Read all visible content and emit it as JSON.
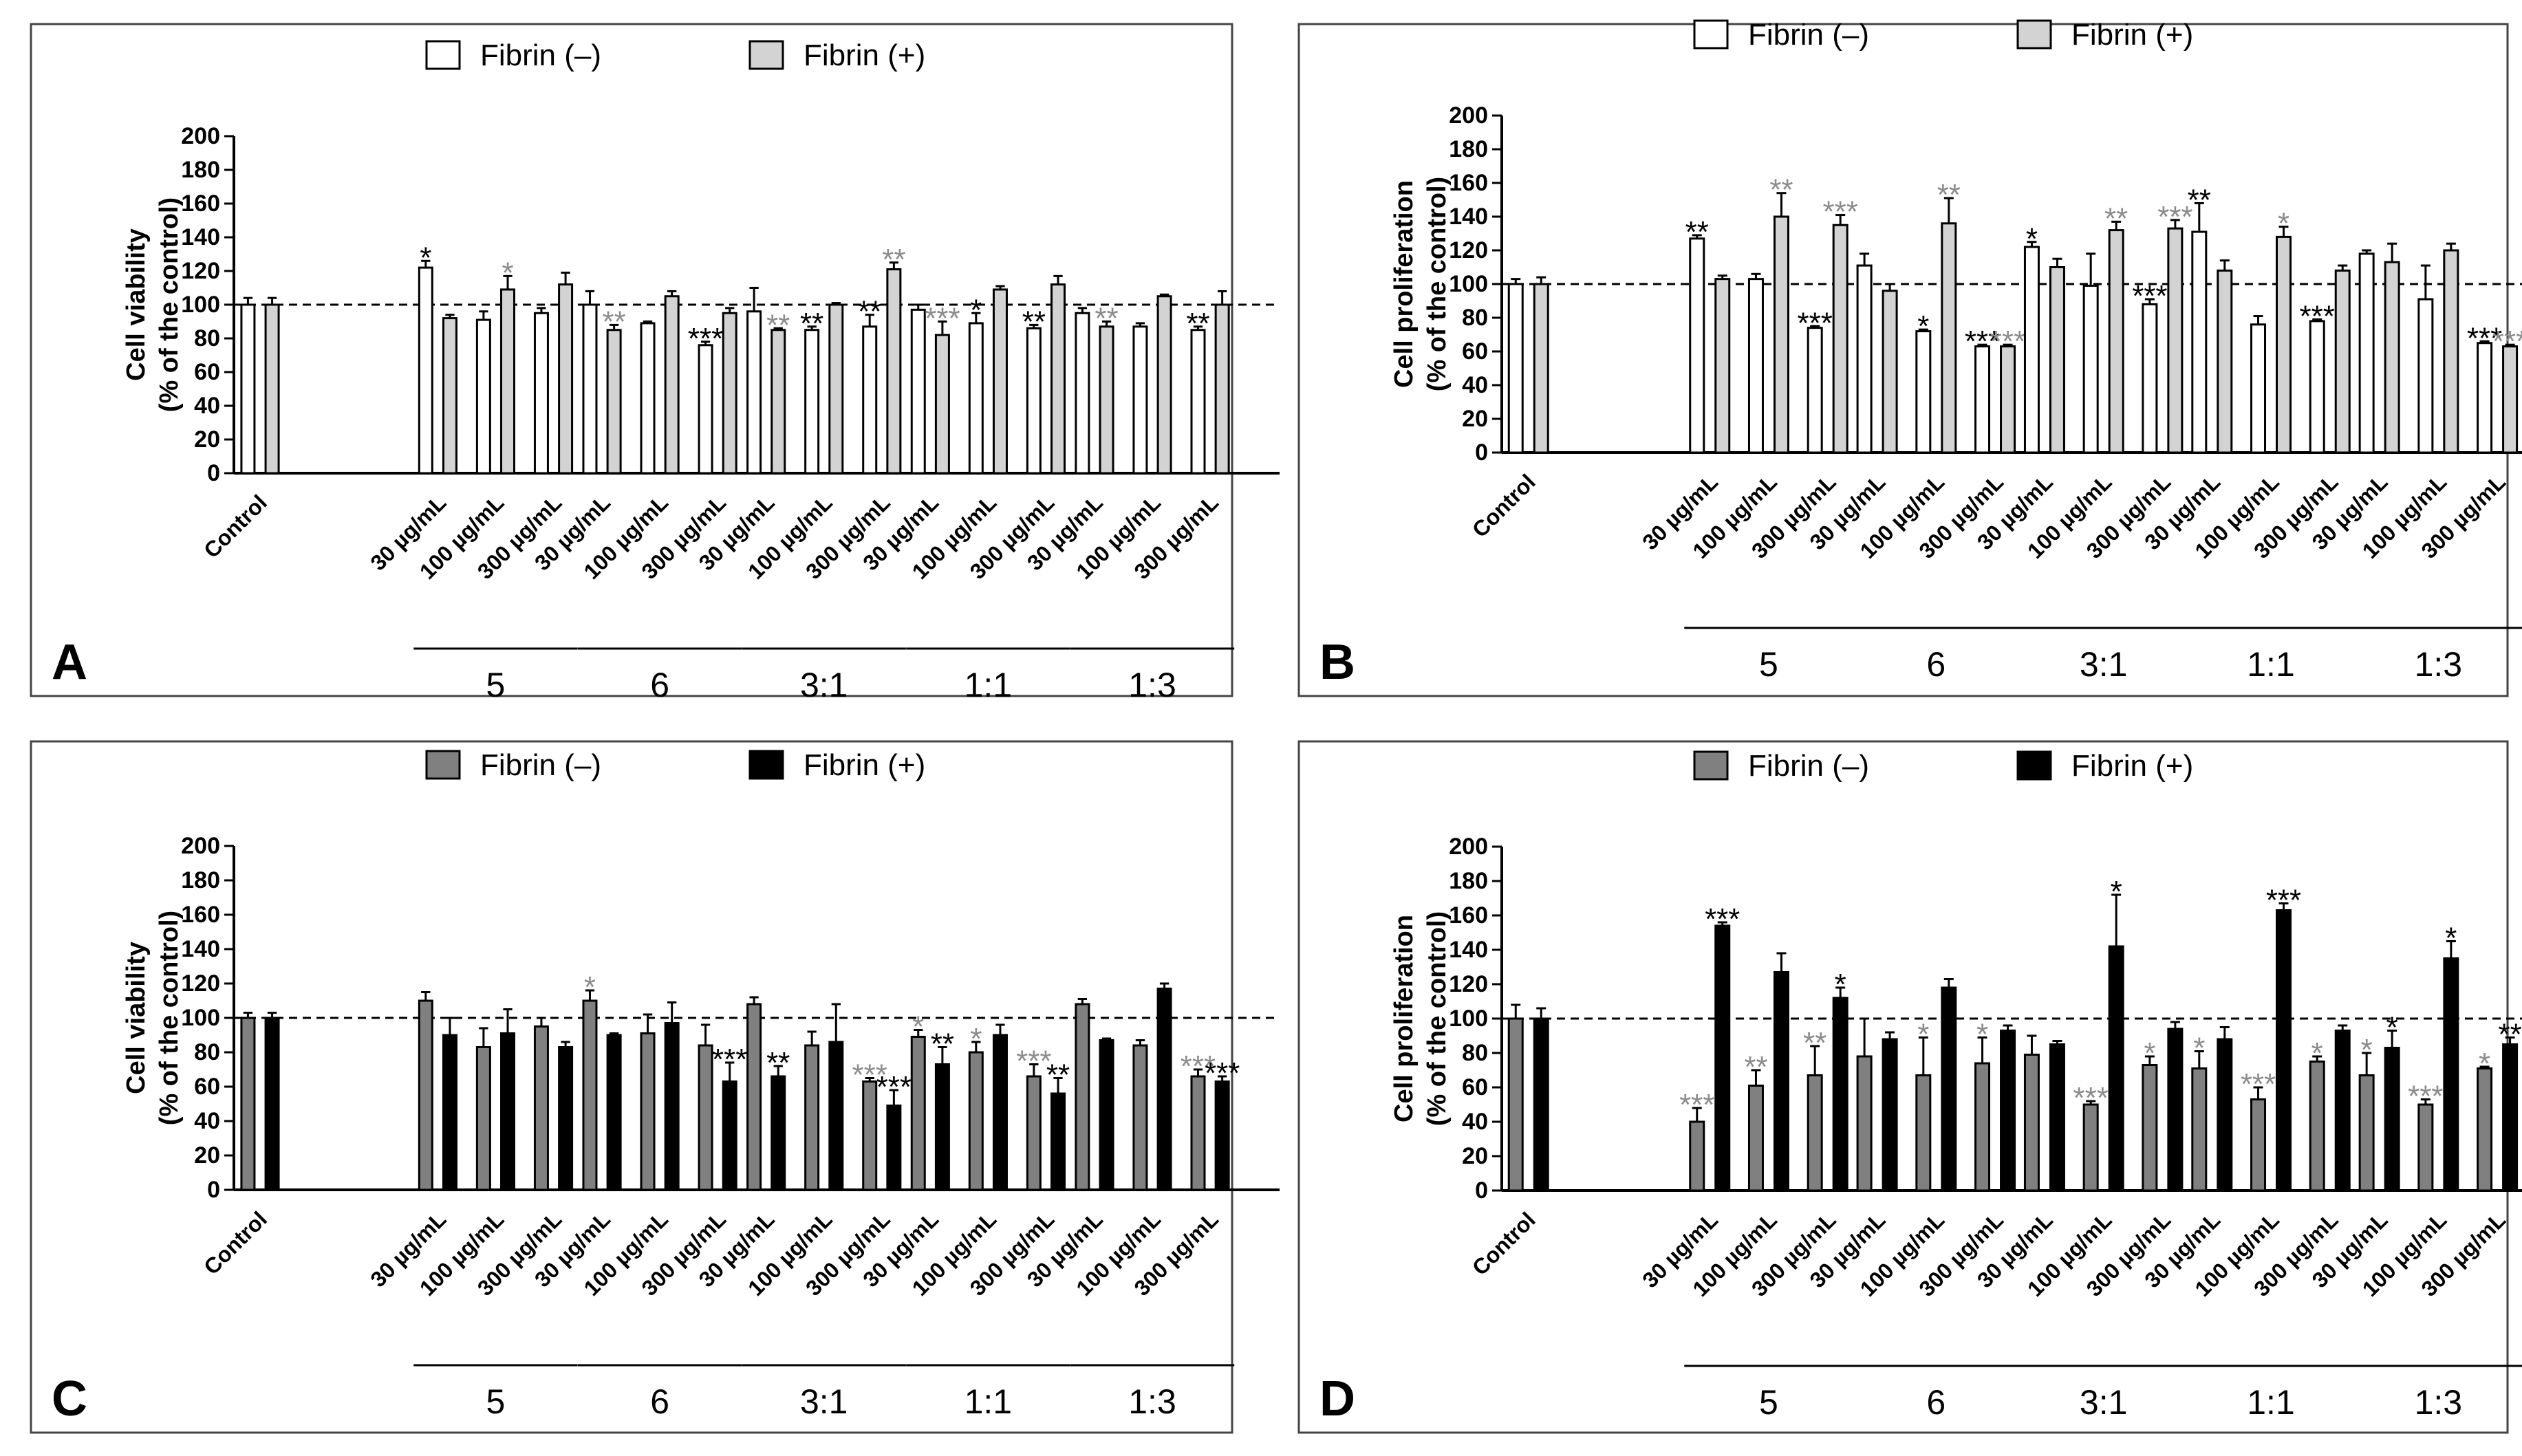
{
  "figure": {
    "colors": {
      "black": "#000000",
      "gray_sig": "#8c8c8c",
      "light_bar": "#d3d3d3",
      "mid_bar": "#808080",
      "white": "#ffffff"
    },
    "control_label": "Control",
    "concentrations": [
      "30 µg/mL",
      "100 µg/mL",
      "300 µg/mL"
    ],
    "groups": [
      "5",
      "6",
      "3:1",
      "1:1",
      "1:3"
    ],
    "y_ticks": [
      "0",
      "20",
      "40",
      "60",
      "80",
      "100",
      "120",
      "140",
      "160",
      "180",
      "200"
    ]
  },
  "chart_data": [
    {
      "panel": "A",
      "type": "bar",
      "ylabel_line1": "Cell viability",
      "ylabel_line2": "(% of the control)",
      "ylim": [
        0,
        200
      ],
      "reference_line": 100,
      "legend": [
        "Fibrin (–)",
        "Fibrin (+)"
      ],
      "series_colors": [
        "#ffffff",
        "#d3d3d3"
      ],
      "control": {
        "values": [
          100,
          100
        ],
        "errors": [
          4,
          4
        ]
      },
      "bars": [
        {
          "fminus": 122,
          "fminus_err": 4,
          "fplus": 92,
          "fplus_err": 2,
          "fminus_sig": "*",
          "fminus_sig_color": "black",
          "fplus_sig": "",
          "fplus_sig_color": "black"
        },
        {
          "fminus": 91,
          "fminus_err": 5,
          "fplus": 109,
          "fplus_err": 8,
          "fminus_sig": "",
          "fminus_sig_color": "black",
          "fplus_sig": "*",
          "fplus_sig_color": "gray"
        },
        {
          "fminus": 95,
          "fminus_err": 3,
          "fplus": 112,
          "fplus_err": 7,
          "fminus_sig": "",
          "fminus_sig_color": "black",
          "fplus_sig": "",
          "fplus_sig_color": "black"
        },
        {
          "fminus": 100,
          "fminus_err": 8,
          "fplus": 85,
          "fplus_err": 3,
          "fminus_sig": "",
          "fminus_sig_color": "black",
          "fplus_sig": "**",
          "fplus_sig_color": "gray"
        },
        {
          "fminus": 89,
          "fminus_err": 1,
          "fplus": 105,
          "fplus_err": 3,
          "fminus_sig": "",
          "fminus_sig_color": "black",
          "fplus_sig": "",
          "fplus_sig_color": "black"
        },
        {
          "fminus": 76,
          "fminus_err": 2,
          "fplus": 95,
          "fplus_err": 3,
          "fminus_sig": "***",
          "fminus_sig_color": "black",
          "fplus_sig": "",
          "fplus_sig_color": "black"
        },
        {
          "fminus": 96,
          "fminus_err": 14,
          "fplus": 85,
          "fplus_err": 1,
          "fminus_sig": "",
          "fminus_sig_color": "black",
          "fplus_sig": "**",
          "fplus_sig_color": "gray"
        },
        {
          "fminus": 85,
          "fminus_err": 2,
          "fplus": 100,
          "fplus_err": 1,
          "fminus_sig": "**",
          "fminus_sig_color": "black",
          "fplus_sig": "",
          "fplus_sig_color": "black"
        },
        {
          "fminus": 87,
          "fminus_err": 7,
          "fplus": 121,
          "fplus_err": 4,
          "fminus_sig": "**",
          "fminus_sig_color": "black",
          "fplus_sig": "**",
          "fplus_sig_color": "gray"
        },
        {
          "fminus": 97,
          "fminus_err": 3,
          "fplus": 82,
          "fplus_err": 8,
          "fminus_sig": "",
          "fminus_sig_color": "black",
          "fplus_sig": "***",
          "fplus_sig_color": "gray"
        },
        {
          "fminus": 89,
          "fminus_err": 6,
          "fplus": 109,
          "fplus_err": 2,
          "fminus_sig": "*",
          "fminus_sig_color": "black",
          "fplus_sig": "",
          "fplus_sig_color": "black"
        },
        {
          "fminus": 86,
          "fminus_err": 2,
          "fplus": 112,
          "fplus_err": 5,
          "fminus_sig": "**",
          "fminus_sig_color": "black",
          "fplus_sig": "",
          "fplus_sig_color": "black"
        },
        {
          "fminus": 95,
          "fminus_err": 3,
          "fplus": 87,
          "fplus_err": 3,
          "fminus_sig": "",
          "fminus_sig_color": "black",
          "fplus_sig": "**",
          "fplus_sig_color": "gray"
        },
        {
          "fminus": 87,
          "fminus_err": 2,
          "fplus": 105,
          "fplus_err": 1,
          "fminus_sig": "",
          "fminus_sig_color": "black",
          "fplus_sig": "",
          "fplus_sig_color": "black"
        },
        {
          "fminus": 85,
          "fminus_err": 2,
          "fplus": 100,
          "fplus_err": 8,
          "fminus_sig": "**",
          "fminus_sig_color": "black",
          "fplus_sig": "",
          "fplus_sig_color": "black"
        }
      ]
    },
    {
      "panel": "B",
      "type": "bar",
      "ylabel_line1": "Cell proliferation",
      "ylabel_line2": "(% of the control)",
      "ylim": [
        0,
        200
      ],
      "reference_line": 100,
      "legend": [
        "Fibrin (–)",
        "Fibrin (+)"
      ],
      "series_colors": [
        "#ffffff",
        "#d3d3d3"
      ],
      "control": {
        "values": [
          100,
          100
        ],
        "errors": [
          3,
          4
        ]
      },
      "bars": [
        {
          "fminus": 127,
          "fminus_err": 2,
          "fplus": 103,
          "fplus_err": 2,
          "fminus_sig": "**",
          "fminus_sig_color": "black",
          "fplus_sig": "",
          "fplus_sig_color": "black"
        },
        {
          "fminus": 103,
          "fminus_err": 3,
          "fplus": 140,
          "fplus_err": 14,
          "fminus_sig": "",
          "fminus_sig_color": "black",
          "fplus_sig": "**",
          "fplus_sig_color": "gray"
        },
        {
          "fminus": 74,
          "fminus_err": 1,
          "fplus": 135,
          "fplus_err": 6,
          "fminus_sig": "***",
          "fminus_sig_color": "black",
          "fplus_sig": "***",
          "fplus_sig_color": "gray"
        },
        {
          "fminus": 111,
          "fminus_err": 7,
          "fplus": 96,
          "fplus_err": 4,
          "fminus_sig": "",
          "fminus_sig_color": "black",
          "fplus_sig": "",
          "fplus_sig_color": "black"
        },
        {
          "fminus": 72,
          "fminus_err": 1,
          "fplus": 136,
          "fplus_err": 15,
          "fminus_sig": "*",
          "fminus_sig_color": "black",
          "fplus_sig": "**",
          "fplus_sig_color": "gray"
        },
        {
          "fminus": 63,
          "fminus_err": 1,
          "fplus": 63,
          "fplus_err": 1,
          "fminus_sig": "***",
          "fminus_sig_color": "black",
          "fplus_sig": "***",
          "fplus_sig_color": "gray"
        },
        {
          "fminus": 122,
          "fminus_err": 3,
          "fplus": 110,
          "fplus_err": 5,
          "fminus_sig": "*",
          "fminus_sig_color": "black",
          "fplus_sig": "",
          "fplus_sig_color": "black"
        },
        {
          "fminus": 99,
          "fminus_err": 19,
          "fplus": 132,
          "fplus_err": 5,
          "fminus_sig": "",
          "fminus_sig_color": "black",
          "fplus_sig": "**",
          "fplus_sig_color": "gray"
        },
        {
          "fminus": 88,
          "fminus_err": 3,
          "fplus": 133,
          "fplus_err": 5,
          "fminus_sig": "***",
          "fminus_sig_color": "black",
          "fplus_sig": "***",
          "fplus_sig_color": "gray"
        },
        {
          "fminus": 131,
          "fminus_err": 17,
          "fplus": 108,
          "fplus_err": 6,
          "fminus_sig": "**",
          "fminus_sig_color": "black",
          "fplus_sig": "",
          "fplus_sig_color": "black"
        },
        {
          "fminus": 76,
          "fminus_err": 5,
          "fplus": 128,
          "fplus_err": 6,
          "fminus_sig": "",
          "fminus_sig_color": "black",
          "fplus_sig": "*",
          "fplus_sig_color": "gray"
        },
        {
          "fminus": 78,
          "fminus_err": 1,
          "fplus": 108,
          "fplus_err": 3,
          "fminus_sig": "***",
          "fminus_sig_color": "black",
          "fplus_sig": "",
          "fplus_sig_color": "black"
        },
        {
          "fminus": 118,
          "fminus_err": 2,
          "fplus": 113,
          "fplus_err": 11,
          "fminus_sig": "",
          "fminus_sig_color": "black",
          "fplus_sig": "",
          "fplus_sig_color": "black"
        },
        {
          "fminus": 91,
          "fminus_err": 20,
          "fplus": 120,
          "fplus_err": 4,
          "fminus_sig": "",
          "fminus_sig_color": "black",
          "fplus_sig": "",
          "fplus_sig_color": "black"
        },
        {
          "fminus": 65,
          "fminus_err": 1,
          "fplus": 63,
          "fplus_err": 1,
          "fminus_sig": "***",
          "fminus_sig_color": "black",
          "fplus_sig": "***",
          "fplus_sig_color": "gray"
        }
      ]
    },
    {
      "panel": "C",
      "type": "bar",
      "ylabel_line1": "Cell viability",
      "ylabel_line2": "(% of the control)",
      "ylim": [
        0,
        200
      ],
      "reference_line": 100,
      "legend": [
        "Fibrin (–)",
        "Fibrin (+)"
      ],
      "series_colors": [
        "#808080",
        "#000000"
      ],
      "control": {
        "values": [
          100,
          100
        ],
        "errors": [
          3,
          3
        ]
      },
      "bars": [
        {
          "fminus": 110,
          "fminus_err": 5,
          "fplus": 90,
          "fplus_err": 10,
          "fminus_sig": "",
          "fminus_sig_color": "black",
          "fplus_sig": "",
          "fplus_sig_color": "black"
        },
        {
          "fminus": 83,
          "fminus_err": 11,
          "fplus": 91,
          "fplus_err": 14,
          "fminus_sig": "",
          "fminus_sig_color": "black",
          "fplus_sig": "",
          "fplus_sig_color": "black"
        },
        {
          "fminus": 95,
          "fminus_err": 5,
          "fplus": 83,
          "fplus_err": 3,
          "fminus_sig": "",
          "fminus_sig_color": "black",
          "fplus_sig": "",
          "fplus_sig_color": "black"
        },
        {
          "fminus": 110,
          "fminus_err": 6,
          "fplus": 90,
          "fplus_err": 1,
          "fminus_sig": "*",
          "fminus_sig_color": "gray",
          "fplus_sig": "",
          "fplus_sig_color": "black"
        },
        {
          "fminus": 91,
          "fminus_err": 11,
          "fplus": 97,
          "fplus_err": 12,
          "fminus_sig": "",
          "fminus_sig_color": "black",
          "fplus_sig": "",
          "fplus_sig_color": "black"
        },
        {
          "fminus": 84,
          "fminus_err": 12,
          "fplus": 63,
          "fplus_err": 11,
          "fminus_sig": "",
          "fminus_sig_color": "black",
          "fplus_sig": "***",
          "fplus_sig_color": "black"
        },
        {
          "fminus": 108,
          "fminus_err": 4,
          "fplus": 66,
          "fplus_err": 6,
          "fminus_sig": "",
          "fminus_sig_color": "black",
          "fplus_sig": "**",
          "fplus_sig_color": "black"
        },
        {
          "fminus": 84,
          "fminus_err": 8,
          "fplus": 86,
          "fplus_err": 22,
          "fminus_sig": "",
          "fminus_sig_color": "black",
          "fplus_sig": "",
          "fplus_sig_color": "black"
        },
        {
          "fminus": 63,
          "fminus_err": 2,
          "fplus": 49,
          "fplus_err": 9,
          "fminus_sig": "***",
          "fminus_sig_color": "gray",
          "fplus_sig": "***",
          "fplus_sig_color": "black"
        },
        {
          "fminus": 89,
          "fminus_err": 4,
          "fplus": 73,
          "fplus_err": 10,
          "fminus_sig": "*",
          "fminus_sig_color": "gray",
          "fplus_sig": "**",
          "fplus_sig_color": "black"
        },
        {
          "fminus": 80,
          "fminus_err": 6,
          "fplus": 90,
          "fplus_err": 6,
          "fminus_sig": "*",
          "fminus_sig_color": "gray",
          "fplus_sig": "",
          "fplus_sig_color": "black"
        },
        {
          "fminus": 66,
          "fminus_err": 7,
          "fplus": 56,
          "fplus_err": 9,
          "fminus_sig": "***",
          "fminus_sig_color": "gray",
          "fplus_sig": "**",
          "fplus_sig_color": "black"
        },
        {
          "fminus": 108,
          "fminus_err": 3,
          "fplus": 87,
          "fplus_err": 1,
          "fminus_sig": "",
          "fminus_sig_color": "black",
          "fplus_sig": "",
          "fplus_sig_color": "black"
        },
        {
          "fminus": 84,
          "fminus_err": 3,
          "fplus": 117,
          "fplus_err": 3,
          "fminus_sig": "",
          "fminus_sig_color": "black",
          "fplus_sig": "",
          "fplus_sig_color": "black"
        },
        {
          "fminus": 66,
          "fminus_err": 4,
          "fplus": 63,
          "fplus_err": 3,
          "fminus_sig": "***",
          "fminus_sig_color": "gray",
          "fplus_sig": "***",
          "fplus_sig_color": "black"
        }
      ]
    },
    {
      "panel": "D",
      "type": "bar",
      "ylabel_line1": "Cell proliferation",
      "ylabel_line2": "(% of the control)",
      "ylim": [
        0,
        200
      ],
      "reference_line": 100,
      "legend": [
        "Fibrin (–)",
        "Fibrin (+)"
      ],
      "series_colors": [
        "#808080",
        "#000000"
      ],
      "control": {
        "values": [
          100,
          100
        ],
        "errors": [
          8,
          6
        ]
      },
      "bars": [
        {
          "fminus": 40,
          "fminus_err": 8,
          "fplus": 154,
          "fplus_err": 2,
          "fminus_sig": "***",
          "fminus_sig_color": "gray",
          "fplus_sig": "***",
          "fplus_sig_color": "black"
        },
        {
          "fminus": 61,
          "fminus_err": 9,
          "fplus": 127,
          "fplus_err": 11,
          "fminus_sig": "**",
          "fminus_sig_color": "gray",
          "fplus_sig": "",
          "fplus_sig_color": "black"
        },
        {
          "fminus": 67,
          "fminus_err": 17,
          "fplus": 112,
          "fplus_err": 6,
          "fminus_sig": "**",
          "fminus_sig_color": "gray",
          "fplus_sig": "*",
          "fplus_sig_color": "black"
        },
        {
          "fminus": 78,
          "fminus_err": 22,
          "fplus": 88,
          "fplus_err": 4,
          "fminus_sig": "",
          "fminus_sig_color": "black",
          "fplus_sig": "",
          "fplus_sig_color": "black"
        },
        {
          "fminus": 67,
          "fminus_err": 22,
          "fplus": 118,
          "fplus_err": 5,
          "fminus_sig": "*",
          "fminus_sig_color": "gray",
          "fplus_sig": "",
          "fplus_sig_color": "black"
        },
        {
          "fminus": 74,
          "fminus_err": 15,
          "fplus": 93,
          "fplus_err": 3,
          "fminus_sig": "*",
          "fminus_sig_color": "gray",
          "fplus_sig": "",
          "fplus_sig_color": "black"
        },
        {
          "fminus": 79,
          "fminus_err": 11,
          "fplus": 85,
          "fplus_err": 2,
          "fminus_sig": "",
          "fminus_sig_color": "black",
          "fplus_sig": "",
          "fplus_sig_color": "black"
        },
        {
          "fminus": 50,
          "fminus_err": 2,
          "fplus": 142,
          "fplus_err": 30,
          "fminus_sig": "***",
          "fminus_sig_color": "gray",
          "fplus_sig": "*",
          "fplus_sig_color": "black"
        },
        {
          "fminus": 73,
          "fminus_err": 5,
          "fplus": 94,
          "fplus_err": 4,
          "fminus_sig": "*",
          "fminus_sig_color": "gray",
          "fplus_sig": "",
          "fplus_sig_color": "black"
        },
        {
          "fminus": 71,
          "fminus_err": 10,
          "fplus": 88,
          "fplus_err": 7,
          "fminus_sig": "*",
          "fminus_sig_color": "gray",
          "fplus_sig": "",
          "fplus_sig_color": "black"
        },
        {
          "fminus": 53,
          "fminus_err": 7,
          "fplus": 163,
          "fplus_err": 4,
          "fminus_sig": "***",
          "fminus_sig_color": "gray",
          "fplus_sig": "***",
          "fplus_sig_color": "black"
        },
        {
          "fminus": 75,
          "fminus_err": 3,
          "fplus": 93,
          "fplus_err": 3,
          "fminus_sig": "*",
          "fminus_sig_color": "gray",
          "fplus_sig": "",
          "fplus_sig_color": "black"
        },
        {
          "fminus": 67,
          "fminus_err": 13,
          "fplus": 83,
          "fplus_err": 10,
          "fminus_sig": "*",
          "fminus_sig_color": "gray",
          "fplus_sig": "*",
          "fplus_sig_color": "black"
        },
        {
          "fminus": 50,
          "fminus_err": 3,
          "fplus": 135,
          "fplus_err": 10,
          "fminus_sig": "***",
          "fminus_sig_color": "gray",
          "fplus_sig": "*",
          "fplus_sig_color": "black"
        },
        {
          "fminus": 71,
          "fminus_err": 1,
          "fplus": 85,
          "fplus_err": 4,
          "fminus_sig": "*",
          "fminus_sig_color": "gray",
          "fplus_sig": "**",
          "fplus_sig_color": "black"
        }
      ]
    }
  ]
}
